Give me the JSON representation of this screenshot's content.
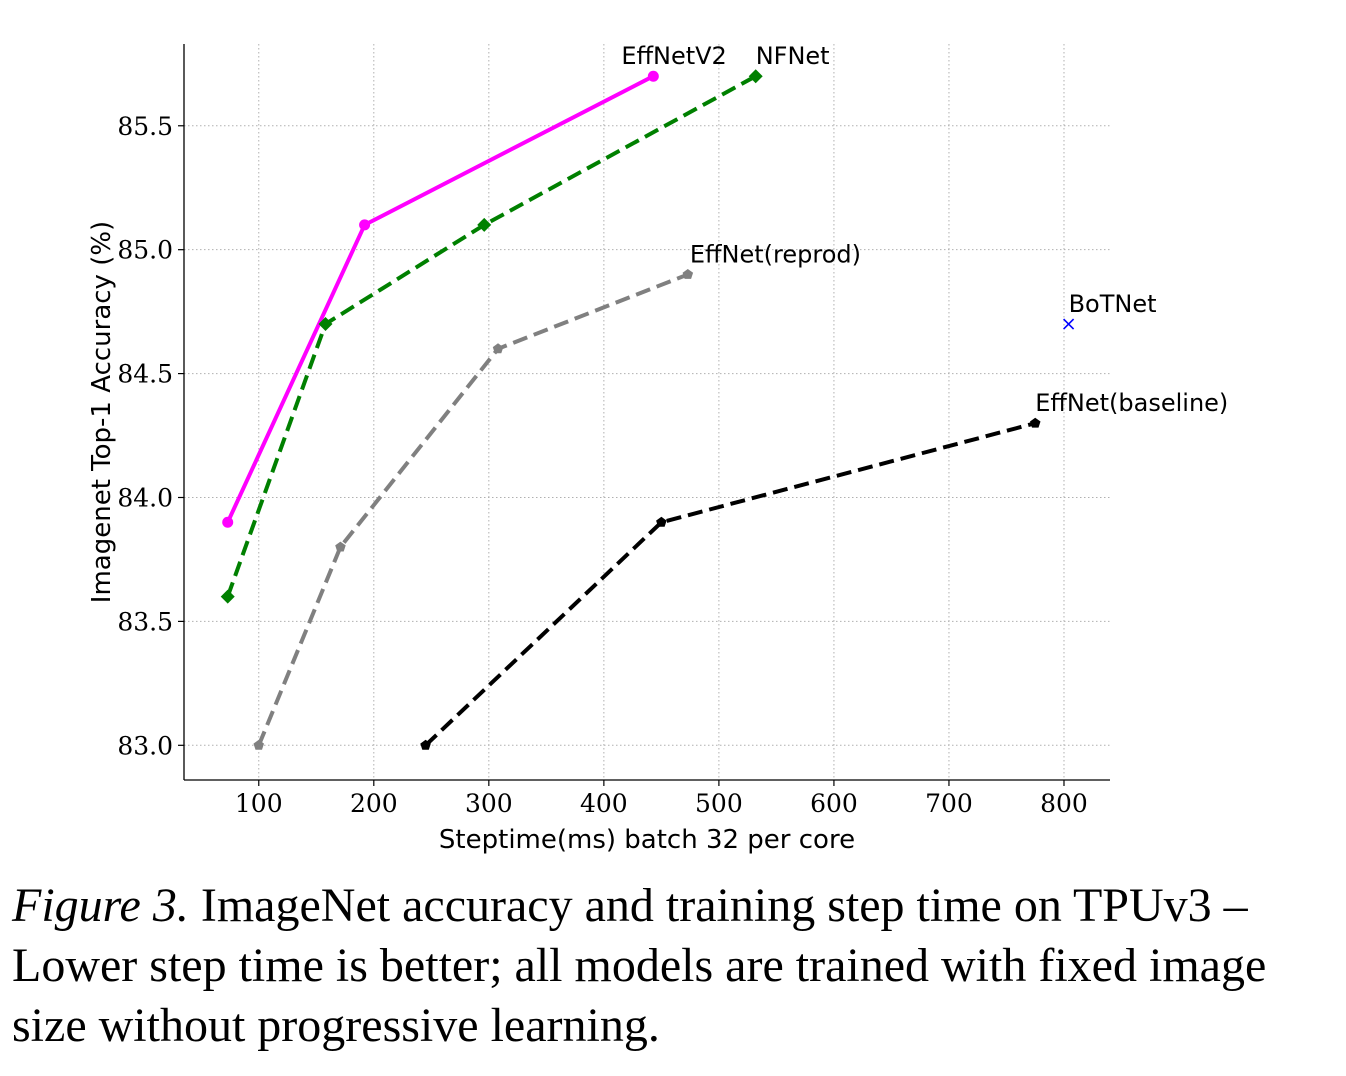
{
  "chart_data": {
    "type": "line",
    "title": "",
    "xlabel": "Steptime(ms) batch 32 per core",
    "ylabel": "Imagenet Top-1 Accuracy (%)",
    "xlim": [
      35,
      840
    ],
    "ylim": [
      82.86,
      85.83
    ],
    "xticks": [
      100,
      200,
      300,
      400,
      500,
      600,
      700,
      800
    ],
    "xtick_labels": [
      "100",
      "200",
      "300",
      "400",
      "500",
      "600",
      "700",
      "800"
    ],
    "yticks": [
      83.0,
      83.5,
      84.0,
      84.5,
      85.0,
      85.5
    ],
    "ytick_labels": [
      "83.0",
      "83.5",
      "84.0",
      "84.5",
      "85.0",
      "85.5"
    ],
    "grid": true,
    "series": [
      {
        "name": "EffNetV2",
        "color": "#ff00ff",
        "line": "solid",
        "marker": "circle",
        "x": [
          73,
          192,
          443
        ],
        "y": [
          83.9,
          85.1,
          85.7
        ]
      },
      {
        "name": "NFNet",
        "color": "#008000",
        "line": "dashed",
        "marker": "diamond",
        "x": [
          73,
          158,
          296,
          532
        ],
        "y": [
          83.6,
          84.7,
          85.1,
          85.7
        ]
      },
      {
        "name": "EffNet(reprod)",
        "color": "#808080",
        "line": "dashed",
        "marker": "pentagon",
        "x": [
          100,
          171,
          308,
          473
        ],
        "y": [
          83.0,
          83.8,
          84.6,
          84.9
        ]
      },
      {
        "name": "BoTNet",
        "color": "#0000ff",
        "line": "none",
        "marker": "x",
        "x": [
          804
        ],
        "y": [
          84.7
        ]
      },
      {
        "name": "EffNet(baseline)",
        "color": "#000000",
        "line": "dashed",
        "marker": "pentagon",
        "x": [
          245,
          450,
          775
        ],
        "y": [
          83.0,
          83.9,
          84.3
        ]
      }
    ]
  },
  "caption": {
    "figure_label": "Figure 3.",
    "text": " ImageNet accuracy and training step time on TPUv3 – Lower step time is better; all models are trained with fixed image size without progressive learning."
  }
}
